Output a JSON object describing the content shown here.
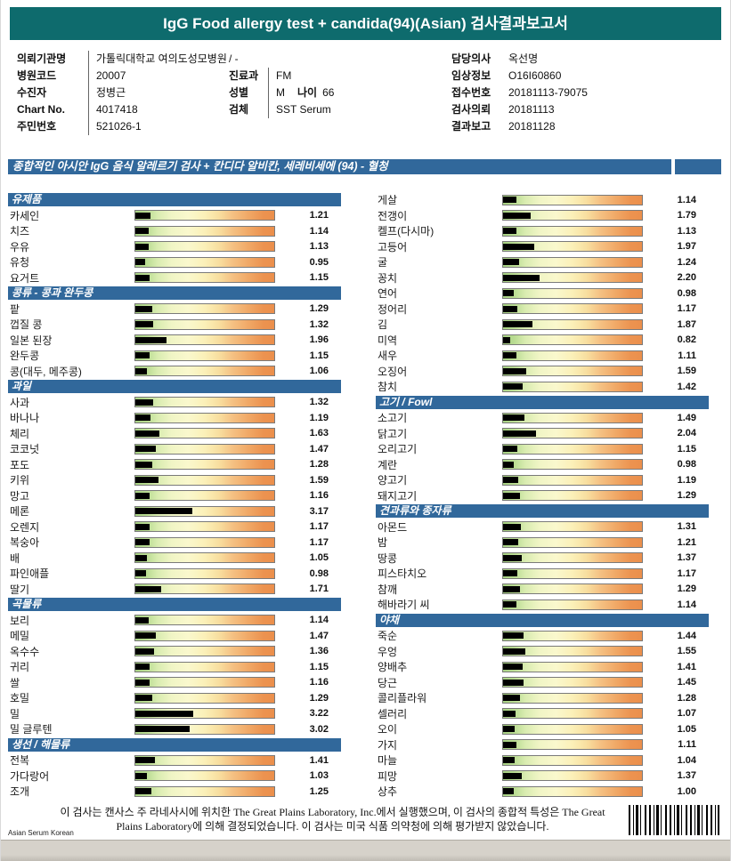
{
  "header": {
    "title": "IgG Food allergy test + candida(94)(Asian) 검사결과보고서"
  },
  "info": {
    "col1": [
      {
        "label": "의뢰기관명",
        "value": "가톨릭대학교 여의도성모병원"
      },
      {
        "label": "병원코드",
        "value": "20007"
      },
      {
        "label": "수진자",
        "value": "정병근"
      },
      {
        "label": "Chart No.",
        "value": "4017418"
      },
      {
        "label": "주민번호",
        "value": "521026-1"
      }
    ],
    "col2": [
      {
        "label": "",
        "value": "/ -"
      },
      {
        "label": "진료과",
        "value": "FM"
      },
      {
        "label": "성별",
        "value": "M",
        "label2": "나이",
        "value2": "66"
      },
      {
        "label": "검체",
        "value": "SST Serum"
      }
    ],
    "col3": [
      {
        "label": "담당의사",
        "value": "옥선명"
      },
      {
        "label": "임상정보",
        "value": "O16I60860"
      },
      {
        "label": "접수번호",
        "value": "20181113-79075"
      },
      {
        "label": "검사의뢰",
        "value": "20181113"
      },
      {
        "label": "결과보고",
        "value": "20181128"
      }
    ]
  },
  "banner": {
    "text": "종합적인 아시안 IgG 음식 알레르기 검사 + 칸디다 알비칸, 세레비세에 (94) - 혈청"
  },
  "chart_data": {
    "type": "bar",
    "orientation": "horizontal",
    "xlim": [
      0,
      7
    ],
    "value_unit": "",
    "columns": [
      {
        "sections": [
          {
            "header": "유제품",
            "items": [
              {
                "label": "카세인",
                "value": "1.21"
              },
              {
                "label": "치즈",
                "value": "1.14"
              },
              {
                "label": "우유",
                "value": "1.13"
              },
              {
                "label": "유청",
                "value": "0.95"
              },
              {
                "label": "요거트",
                "value": "1.15"
              }
            ]
          },
          {
            "header": "콩류 - 콩과 완두콩",
            "items": [
              {
                "label": "팥",
                "value": "1.29"
              },
              {
                "label": "껍질 콩",
                "value": "1.32"
              },
              {
                "label": "일본 된장",
                "value": "1.96"
              },
              {
                "label": "완두콩",
                "value": "1.15"
              },
              {
                "label": "콩(대두, 메주콩)",
                "value": "1.06"
              }
            ]
          },
          {
            "header": "과일",
            "items": [
              {
                "label": "사과",
                "value": "1.32"
              },
              {
                "label": "바나나",
                "value": "1.19"
              },
              {
                "label": "체리",
                "value": "1.63"
              },
              {
                "label": "코코넛",
                "value": "1.47"
              },
              {
                "label": "포도",
                "value": "1.28"
              },
              {
                "label": "키위",
                "value": "1.59"
              },
              {
                "label": "망고",
                "value": "1.16"
              },
              {
                "label": "메론",
                "value": "3.17"
              },
              {
                "label": "오렌지",
                "value": "1.17"
              },
              {
                "label": "복숭아",
                "value": "1.17"
              },
              {
                "label": "배",
                "value": "1.05"
              },
              {
                "label": "파인애플",
                "value": "0.98"
              },
              {
                "label": "딸기",
                "value": "1.71"
              }
            ]
          },
          {
            "header": "곡물류",
            "items": [
              {
                "label": "보리",
                "value": "1.14"
              },
              {
                "label": "메밀",
                "value": "1.47"
              },
              {
                "label": "옥수수",
                "value": "1.36"
              },
              {
                "label": "귀리",
                "value": "1.15"
              },
              {
                "label": "쌀",
                "value": "1.16"
              },
              {
                "label": "호밀",
                "value": "1.29"
              },
              {
                "label": "밀",
                "value": "3.22"
              },
              {
                "label": "밀 글루텐",
                "value": "3.02"
              }
            ]
          },
          {
            "header": "생선 / 해물류",
            "items": [
              {
                "label": "전복",
                "value": "1.41"
              },
              {
                "label": "가다랑어",
                "value": "1.03"
              },
              {
                "label": "조개",
                "value": "1.25"
              }
            ]
          }
        ]
      },
      {
        "sections": [
          {
            "header": "",
            "items": [
              {
                "label": "게살",
                "value": "1.14"
              },
              {
                "label": "전갱이",
                "value": "1.79"
              },
              {
                "label": "켈프(다시마)",
                "value": "1.13"
              },
              {
                "label": "고등어",
                "value": "1.97"
              },
              {
                "label": "굴",
                "value": "1.24"
              },
              {
                "label": "꽁치",
                "value": "2.20"
              },
              {
                "label": "연어",
                "value": "0.98"
              },
              {
                "label": "정어리",
                "value": "1.17"
              },
              {
                "label": "김",
                "value": "1.87"
              },
              {
                "label": "미역",
                "value": "0.82"
              },
              {
                "label": "새우",
                "value": "1.11"
              },
              {
                "label": "오징어",
                "value": "1.59"
              },
              {
                "label": "참치",
                "value": "1.42"
              }
            ]
          },
          {
            "header": "고기 / Fowl",
            "items": [
              {
                "label": "소고기",
                "value": "1.49"
              },
              {
                "label": "닭고기",
                "value": "2.04"
              },
              {
                "label": "오리고기",
                "value": "1.15"
              },
              {
                "label": "계란",
                "value": "0.98"
              },
              {
                "label": "양고기",
                "value": "1.19"
              },
              {
                "label": "돼지고기",
                "value": "1.29"
              }
            ]
          },
          {
            "header": "견과류와 종자류",
            "items": [
              {
                "label": "아몬드",
                "value": "1.31"
              },
              {
                "label": "밤",
                "value": "1.21"
              },
              {
                "label": "땅콩",
                "value": "1.37"
              },
              {
                "label": "피스타치오",
                "value": "1.17"
              },
              {
                "label": "참깨",
                "value": "1.29"
              },
              {
                "label": "해바라기 씨",
                "value": "1.14"
              }
            ]
          },
          {
            "header": "야채",
            "items": [
              {
                "label": "죽순",
                "value": "1.44"
              },
              {
                "label": "우엉",
                "value": "1.55"
              },
              {
                "label": "양배추",
                "value": "1.41"
              },
              {
                "label": "당근",
                "value": "1.45"
              },
              {
                "label": "콜리플라워",
                "value": "1.28"
              },
              {
                "label": "셀러리",
                "value": "1.07"
              },
              {
                "label": "오이",
                "value": "1.05"
              },
              {
                "label": "가지",
                "value": "1.11"
              },
              {
                "label": "마늘",
                "value": "1.04"
              },
              {
                "label": "피망",
                "value": "1.37"
              },
              {
                "label": "상추",
                "value": "1.00"
              }
            ]
          }
        ]
      }
    ]
  },
  "footer": {
    "disclaimer": "이 검사는 캔사스 주 라네사시에 위치한 The Great Plains Laboratory, Inc.에서 실행했으며, 이 검사의 종합적 특성은 The Great Plains Laboratory에 의해 결정되었습니다. 이 검사는 미국 식품 의약청에 의해 평가받지 않았습니다.",
    "note": "Asian Serum Korean"
  }
}
